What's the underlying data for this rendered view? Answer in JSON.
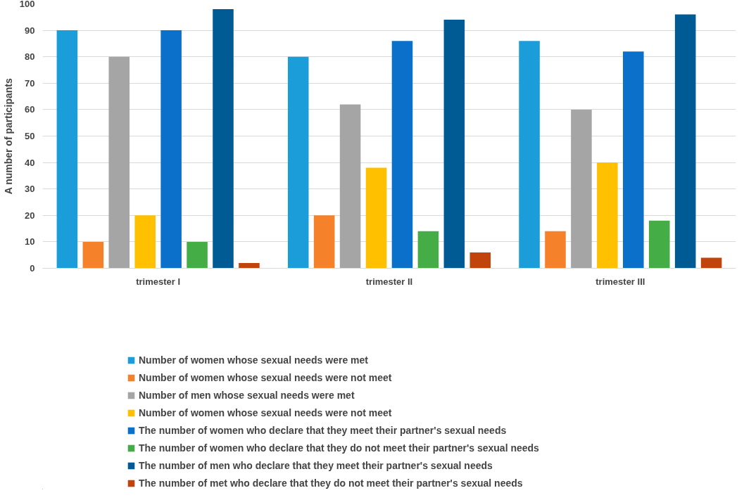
{
  "chart_data": {
    "type": "bar",
    "ylabel": "A number of participants",
    "categories": [
      "trimester I",
      "trimester II",
      "trimester III"
    ],
    "series": [
      {
        "name": "Number of women whose sexual needs were met",
        "color": "#1a9dd9",
        "values": [
          90,
          80,
          86
        ]
      },
      {
        "name": "Number of women whose sexual needs were not meet",
        "color": "#f6812b",
        "values": [
          10,
          20,
          14
        ]
      },
      {
        "name": "Number of men whose sexual needs were met",
        "color": "#a5a5a5",
        "values": [
          80,
          62,
          60
        ]
      },
      {
        "name": "Number of women whose sexual needs were not meet",
        "color": "#ffc000",
        "values": [
          20,
          38,
          40
        ]
      },
      {
        "name": "The number of women who declare that they meet their partner's sexual needs",
        "color": "#0b70c9",
        "values": [
          90,
          86,
          82
        ]
      },
      {
        "name": "The number of women who declare that they do not meet their partner's sexual needs",
        "color": "#44ad46",
        "values": [
          10,
          14,
          18
        ]
      },
      {
        "name": "The number of men who declare that they meet their partner's sexual needs",
        "color": "#005b94",
        "values": [
          98,
          94,
          96
        ]
      },
      {
        "name": "The number of met who declare that they do not meet their partner's sexual needs",
        "color": "#c0440b",
        "values": [
          2,
          6,
          4
        ]
      }
    ],
    "ylim": [
      0,
      100
    ],
    "yticks": [
      0,
      10,
      20,
      30,
      40,
      50,
      60,
      70,
      80,
      90,
      100
    ],
    "grid": "y",
    "legend": "bottom"
  }
}
